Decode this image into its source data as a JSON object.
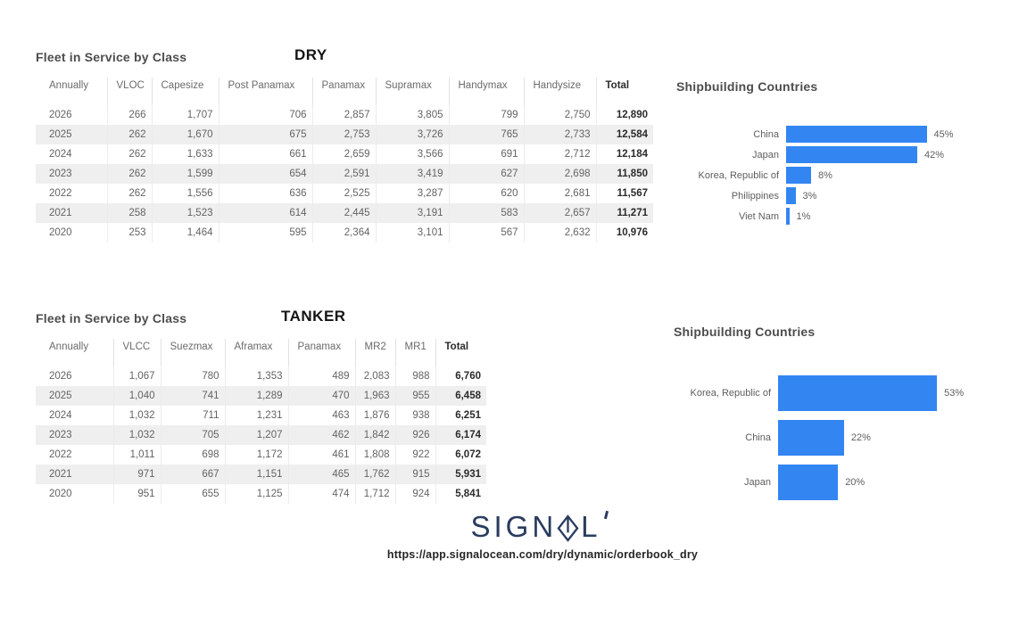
{
  "colors": {
    "bar_blue": "#3385F2",
    "logo_navy": "#2A3C5E",
    "row_stripe_gray": "#EFEFEF"
  },
  "chart_data": [
    {
      "id": "dry_fleet_table",
      "type": "table",
      "title": "Fleet in Service by Class",
      "category": "DRY",
      "columns": [
        "Annually",
        "VLOC",
        "Capesize",
        "Post Panamax",
        "Panamax",
        "Supramax",
        "Handymax",
        "Handysize",
        "Total"
      ],
      "rows": [
        [
          "2026",
          "266",
          "1,707",
          "706",
          "2,857",
          "3,805",
          "799",
          "2,750",
          "12,890"
        ],
        [
          "2025",
          "262",
          "1,670",
          "675",
          "2,753",
          "3,726",
          "765",
          "2,733",
          "12,584"
        ],
        [
          "2024",
          "262",
          "1,633",
          "661",
          "2,659",
          "3,566",
          "691",
          "2,712",
          "12,184"
        ],
        [
          "2023",
          "262",
          "1,599",
          "654",
          "2,591",
          "3,419",
          "627",
          "2,698",
          "11,850"
        ],
        [
          "2022",
          "262",
          "1,556",
          "636",
          "2,525",
          "3,287",
          "620",
          "2,681",
          "11,567"
        ],
        [
          "2021",
          "258",
          "1,523",
          "614",
          "2,445",
          "3,191",
          "583",
          "2,657",
          "11,271"
        ],
        [
          "2020",
          "253",
          "1,464",
          "595",
          "2,364",
          "3,101",
          "567",
          "2,632",
          "10,976"
        ]
      ]
    },
    {
      "id": "dry_shipbuilding_chart",
      "type": "bar",
      "orientation": "horizontal",
      "title": "Shipbuilding Countries",
      "categories": [
        "China",
        "Japan",
        "Korea, Republic of",
        "Philippines",
        "Viet Nam"
      ],
      "values": [
        45,
        42,
        8,
        3,
        1
      ],
      "value_suffix": "%",
      "xlim": [
        0,
        70
      ],
      "grid": false,
      "legend": false,
      "bar_color": "#3385F2"
    },
    {
      "id": "tanker_fleet_table",
      "type": "table",
      "title": "Fleet in Service by Class",
      "category": "TANKER",
      "columns": [
        "Annually",
        "VLCC",
        "Suezmax",
        "Aframax",
        "Panamax",
        "MR2",
        "MR1",
        "Total"
      ],
      "rows": [
        [
          "2026",
          "1,067",
          "780",
          "1,353",
          "489",
          "2,083",
          "988",
          "6,760"
        ],
        [
          "2025",
          "1,040",
          "741",
          "1,289",
          "470",
          "1,963",
          "955",
          "6,458"
        ],
        [
          "2024",
          "1,032",
          "711",
          "1,231",
          "463",
          "1,876",
          "938",
          "6,251"
        ],
        [
          "2023",
          "1,032",
          "705",
          "1,207",
          "462",
          "1,842",
          "926",
          "6,174"
        ],
        [
          "2022",
          "1,011",
          "698",
          "1,172",
          "461",
          "1,808",
          "922",
          "6,072"
        ],
        [
          "2021",
          "971",
          "667",
          "1,151",
          "465",
          "1,762",
          "915",
          "5,931"
        ],
        [
          "2020",
          "951",
          "655",
          "1,125",
          "474",
          "1,712",
          "924",
          "5,841"
        ]
      ]
    },
    {
      "id": "tanker_shipbuilding_chart",
      "type": "bar",
      "orientation": "horizontal",
      "title": "Shipbuilding Countries",
      "categories": [
        "Korea, Republic of",
        "China",
        "Japan"
      ],
      "values": [
        53,
        22,
        20
      ],
      "value_suffix": "%",
      "xlim": [
        0,
        75
      ],
      "grid": false,
      "legend": false,
      "bar_color": "#3385F2"
    }
  ],
  "footer": {
    "logo": {
      "text": "SIGNAL",
      "left": "SIGN",
      "right": "L"
    },
    "url": "https://app.signalocean.com/dry/dynamic/orderbook_dry"
  }
}
